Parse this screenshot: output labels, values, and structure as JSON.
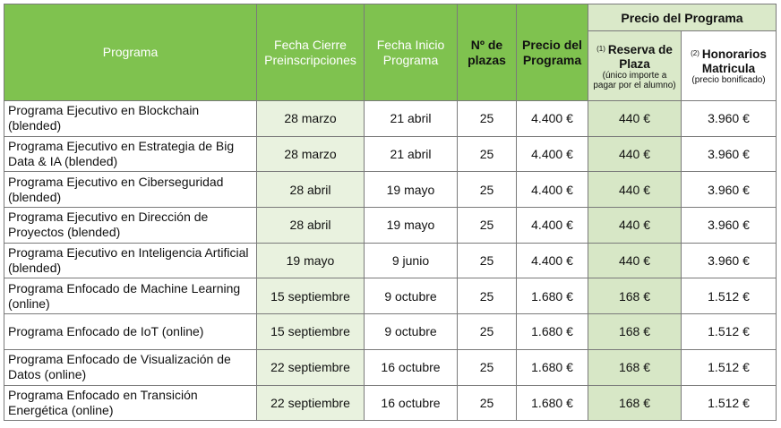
{
  "header": {
    "programa": "Programa",
    "fecha_cierre": "Fecha Cierre Preinscripciones",
    "fecha_inicio": "Fecha Inicio Programa",
    "plazas": "Nº de plazas",
    "precio": "Precio del Programa",
    "precio_group": "Precio del Programa",
    "reserva_num": "(1)",
    "reserva": "Reserva de Plaza",
    "reserva_note": "(único importe a pagar por el alumno)",
    "honorarios_num": "(2)",
    "honorarios": "Honorarios Matricula",
    "honorarios_note": "(precio bonificado)"
  },
  "rows": [
    {
      "programa": "Programa Ejecutivo en Blockchain (blended)",
      "cierre": "28 marzo",
      "inicio": "21 abril",
      "plazas": "25",
      "precio": "4.400 €",
      "reserva": "440 €",
      "honorarios": "3.960 €"
    },
    {
      "programa": "Programa Ejecutivo en Estrategia de Big Data & IA (blended)",
      "cierre": "28 marzo",
      "inicio": "21 abril",
      "plazas": "25",
      "precio": "4.400 €",
      "reserva": "440 €",
      "honorarios": "3.960 €"
    },
    {
      "programa": "Programa Ejecutivo en Ciberseguridad (blended)",
      "cierre": "28 abril",
      "inicio": "19 mayo",
      "plazas": "25",
      "precio": "4.400 €",
      "reserva": "440 €",
      "honorarios": "3.960 €"
    },
    {
      "programa": "Programa Ejecutivo en Dirección de Proyectos (blended)",
      "cierre": "28 abril",
      "inicio": "19 mayo",
      "plazas": "25",
      "precio": "4.400 €",
      "reserva": "440 €",
      "honorarios": "3.960 €"
    },
    {
      "programa": "Programa Ejecutivo en Inteligencia Artificial (blended)",
      "cierre": "19 mayo",
      "inicio": "9 junio",
      "plazas": "25",
      "precio": "4.400 €",
      "reserva": "440 €",
      "honorarios": "3.960 €"
    },
    {
      "programa": "Programa Enfocado de Machine Learning (online)",
      "cierre": "15 septiembre",
      "inicio": "9 octubre",
      "plazas": "25",
      "precio": "1.680 €",
      "reserva": "168 €",
      "honorarios": "1.512 €"
    },
    {
      "programa": "Programa Enfocado de IoT (online)",
      "cierre": "15 septiembre",
      "inicio": "9 octubre",
      "plazas": "25",
      "precio": "1.680 €",
      "reserva": "168 €",
      "honorarios": "1.512 €"
    },
    {
      "programa": "Programa Enfocado de Visualización de Datos (online)",
      "cierre": "22 septiembre",
      "inicio": "16 octubre",
      "plazas": "25",
      "precio": "1.680 €",
      "reserva": "168 €",
      "honorarios": "1.512 €"
    },
    {
      "programa": "Programa Enfocado en Transición Energética (online)",
      "cierre": "22 septiembre",
      "inicio": "16 octubre",
      "plazas": "25",
      "precio": "1.680 €",
      "reserva": "168 €",
      "honorarios": "1.512 €"
    }
  ],
  "colors": {
    "header_green": "#7fc24f",
    "light_green": "#dae9c9",
    "cell_tint": "#e9f2df",
    "reserva_tint": "#d7e7c6"
  }
}
